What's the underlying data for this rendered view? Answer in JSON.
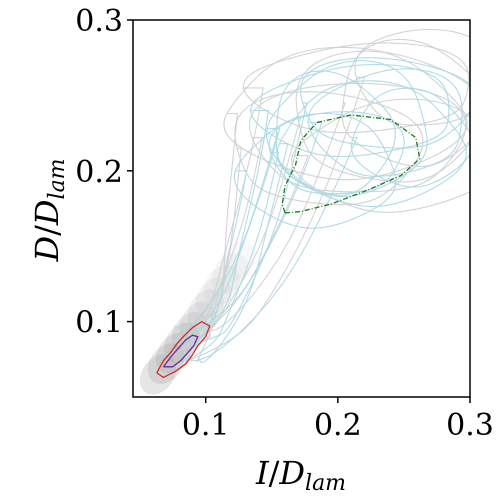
{
  "chart_data": {
    "type": "line",
    "xlabel": {
      "main": "I",
      "slash": "/",
      "sym": "D",
      "sub": "lam"
    },
    "ylabel": {
      "main": "D",
      "slash": "/",
      "sym": "D",
      "sub": "lam"
    },
    "xlim": [
      0.045,
      0.3
    ],
    "ylim": [
      0.05,
      0.3
    ],
    "xticks": [
      0.1,
      0.2,
      0.3
    ],
    "yticks": [
      0.1,
      0.2,
      0.3
    ],
    "xtick_labels": [
      "0.1",
      "0.2",
      "0.3"
    ],
    "ytick_labels": [
      "0.1",
      "0.2",
      "0.3"
    ],
    "series": [
      {
        "style": "light-gray-trajectories",
        "color": "#cfcfcf",
        "loops": [
          {
            "cx": 0.215,
            "cy": 0.222,
            "rx": 0.08,
            "ry": 0.04
          },
          {
            "cx": 0.235,
            "cy": 0.236,
            "rx": 0.07,
            "ry": 0.045
          },
          {
            "cx": 0.255,
            "cy": 0.245,
            "rx": 0.055,
            "ry": 0.04
          },
          {
            "cx": 0.205,
            "cy": 0.238,
            "rx": 0.09,
            "ry": 0.04
          },
          {
            "cx": 0.245,
            "cy": 0.21,
            "rx": 0.075,
            "ry": 0.035
          },
          {
            "cx": 0.22,
            "cy": 0.255,
            "rx": 0.085,
            "ry": 0.03
          },
          {
            "cx": 0.265,
            "cy": 0.262,
            "rx": 0.05,
            "ry": 0.035
          },
          {
            "cx": 0.19,
            "cy": 0.215,
            "rx": 0.07,
            "ry": 0.04
          }
        ]
      },
      {
        "style": "light-blue-trajectories",
        "color": "#a8d8e6",
        "loops": [
          {
            "cx": 0.225,
            "cy": 0.218,
            "rx": 0.07,
            "ry": 0.038
          },
          {
            "cx": 0.21,
            "cy": 0.228,
            "rx": 0.06,
            "ry": 0.042
          },
          {
            "cx": 0.24,
            "cy": 0.232,
            "rx": 0.058,
            "ry": 0.036
          },
          {
            "cx": 0.2,
            "cy": 0.212,
            "rx": 0.05,
            "ry": 0.03
          },
          {
            "cx": 0.235,
            "cy": 0.245,
            "rx": 0.065,
            "ry": 0.032
          },
          {
            "cx": 0.195,
            "cy": 0.225,
            "rx": 0.045,
            "ry": 0.04
          },
          {
            "cx": 0.255,
            "cy": 0.222,
            "rx": 0.045,
            "ry": 0.03
          },
          {
            "cx": 0.185,
            "cy": 0.2,
            "rx": 0.06,
            "ry": 0.035
          },
          {
            "cx": 0.215,
            "cy": 0.24,
            "rx": 0.075,
            "ry": 0.03
          }
        ]
      },
      {
        "style": "attractor-contour-dashed",
        "color": "#1a7a1a",
        "contour": [
          [
            0.16,
            0.172
          ],
          [
            0.172,
            0.173
          ],
          [
            0.195,
            0.178
          ],
          [
            0.222,
            0.187
          ],
          [
            0.248,
            0.197
          ],
          [
            0.262,
            0.208
          ],
          [
            0.259,
            0.222
          ],
          [
            0.24,
            0.234
          ],
          [
            0.21,
            0.237
          ],
          [
            0.184,
            0.232
          ],
          [
            0.172,
            0.22
          ],
          [
            0.168,
            0.204
          ],
          [
            0.16,
            0.19
          ],
          [
            0.158,
            0.178
          ],
          [
            0.16,
            0.172
          ]
        ]
      },
      {
        "style": "lower-branch-red-contour",
        "color": "#d62728",
        "contour": [
          [
            0.063,
            0.066
          ],
          [
            0.068,
            0.074
          ],
          [
            0.074,
            0.08
          ],
          [
            0.078,
            0.085
          ],
          [
            0.083,
            0.09
          ],
          [
            0.09,
            0.096
          ],
          [
            0.097,
            0.1
          ],
          [
            0.103,
            0.097
          ],
          [
            0.1,
            0.09
          ],
          [
            0.094,
            0.084
          ],
          [
            0.09,
            0.078
          ],
          [
            0.085,
            0.072
          ],
          [
            0.077,
            0.067
          ],
          [
            0.068,
            0.063
          ],
          [
            0.063,
            0.066
          ]
        ]
      },
      {
        "style": "lower-branch-purple-contour",
        "color": "#6a2c9a",
        "contour": [
          [
            0.068,
            0.07
          ],
          [
            0.074,
            0.077
          ],
          [
            0.08,
            0.083
          ],
          [
            0.085,
            0.088
          ],
          [
            0.09,
            0.091
          ],
          [
            0.094,
            0.09
          ],
          [
            0.091,
            0.084
          ],
          [
            0.086,
            0.079
          ],
          [
            0.081,
            0.074
          ],
          [
            0.075,
            0.07
          ],
          [
            0.068,
            0.07
          ]
        ]
      }
    ],
    "density": [
      {
        "x": 0.064,
        "y": 0.065,
        "w": 0.9
      },
      {
        "x": 0.07,
        "y": 0.072,
        "w": 0.9
      },
      {
        "x": 0.076,
        "y": 0.079,
        "w": 0.8
      },
      {
        "x": 0.082,
        "y": 0.086,
        "w": 0.8
      },
      {
        "x": 0.088,
        "y": 0.093,
        "w": 0.7
      },
      {
        "x": 0.094,
        "y": 0.1,
        "w": 0.6
      },
      {
        "x": 0.1,
        "y": 0.108,
        "w": 0.5
      },
      {
        "x": 0.106,
        "y": 0.116,
        "w": 0.4
      },
      {
        "x": 0.112,
        "y": 0.124,
        "w": 0.35
      },
      {
        "x": 0.118,
        "y": 0.132,
        "w": 0.3
      },
      {
        "x": 0.124,
        "y": 0.14,
        "w": 0.25
      }
    ]
  }
}
